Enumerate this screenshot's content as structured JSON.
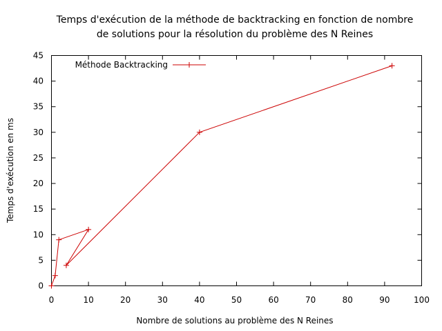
{
  "chart_data": {
    "type": "line",
    "title_line1": "Temps d'exécution de la méthode de backtracking en fonction de nombre",
    "title_line2": "de solutions pour la résolution du problème des N Reines",
    "xlabel": "Nombre de solutions au problème des N Reines",
    "ylabel": "Temps d'exécution en ms",
    "xlim": [
      0,
      100
    ],
    "ylim": [
      0,
      45
    ],
    "xticks": [
      0,
      10,
      20,
      30,
      40,
      50,
      60,
      70,
      80,
      90,
      100
    ],
    "yticks": [
      0,
      5,
      10,
      15,
      20,
      25,
      30,
      35,
      40,
      45
    ],
    "grid": false,
    "legend_position": "top-left",
    "series": [
      {
        "name": "Méthode Backtracking",
        "color": "#cc0000",
        "marker": "plus",
        "x": [
          0,
          1,
          2,
          10,
          4,
          40,
          92
        ],
        "y": [
          0,
          2,
          9,
          11,
          4,
          30,
          43
        ]
      }
    ]
  }
}
